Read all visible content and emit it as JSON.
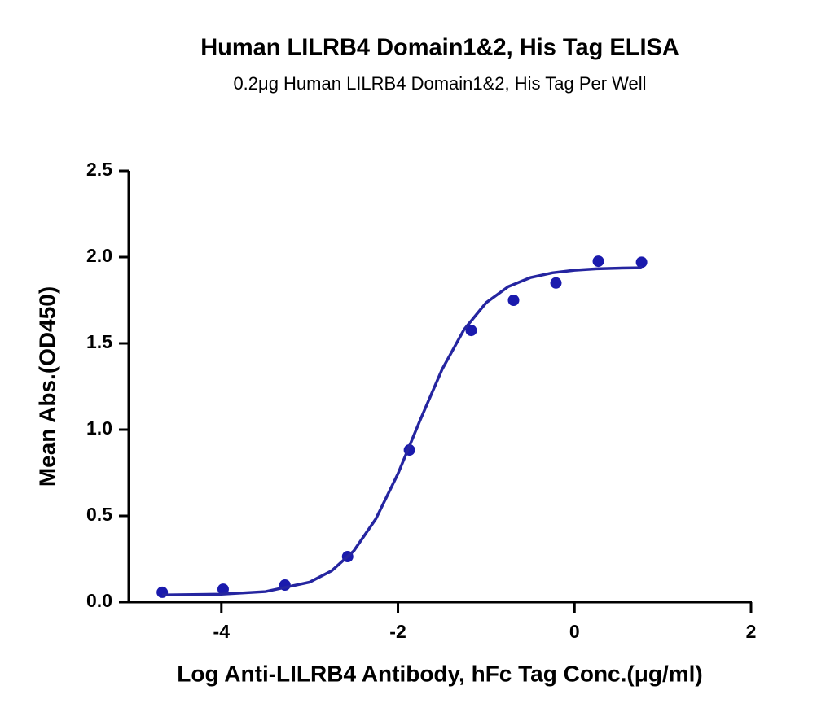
{
  "chart_data": {
    "type": "scatter",
    "title": "Human LILRB4 Domain1&2, His Tag ELISA",
    "subtitle": "0.2μg Human LILRB4 Domain1&2, His Tag Per Well",
    "x_label": "Log Anti-LILRB4 Antibody, hFc Tag Conc.(μg/ml)",
    "y_label": "Mean Abs.(OD450)",
    "xlim": [
      -5.05,
      2
    ],
    "ylim": [
      0,
      2.5
    ],
    "xticks": [
      -4,
      -2,
      0,
      2
    ],
    "yticks": [
      {
        "value": 0,
        "label": "0.0"
      },
      0.5,
      {
        "value": 1,
        "label": "1.0"
      },
      1.5,
      {
        "value": 2,
        "label": "2.0"
      },
      2.5
    ],
    "series": [
      {
        "type": "scatter",
        "color": "#1a1aad",
        "x": [
          -4.67,
          -3.98,
          -3.28,
          -2.57,
          -1.87,
          -1.17,
          -0.69,
          -0.21,
          0.27,
          0.76
        ],
        "values": [
          0.057,
          0.075,
          0.099,
          0.264,
          0.882,
          1.575,
          1.75,
          1.85,
          1.976,
          1.97
        ]
      },
      {
        "type": "line",
        "color": "#2525a0",
        "x": [
          -4.67,
          -4.0,
          -3.5,
          -3.0,
          -2.75,
          -2.5,
          -2.25,
          -2.0,
          -1.75,
          -1.5,
          -1.25,
          -1.0,
          -0.75,
          -0.5,
          -0.25,
          0,
          0.25,
          0.5,
          0.76
        ],
        "values": [
          0.041,
          0.046,
          0.061,
          0.116,
          0.182,
          0.297,
          0.483,
          0.744,
          1.053,
          1.349,
          1.581,
          1.736,
          1.829,
          1.881,
          1.909,
          1.924,
          1.932,
          1.936,
          1.938
        ]
      }
    ]
  }
}
